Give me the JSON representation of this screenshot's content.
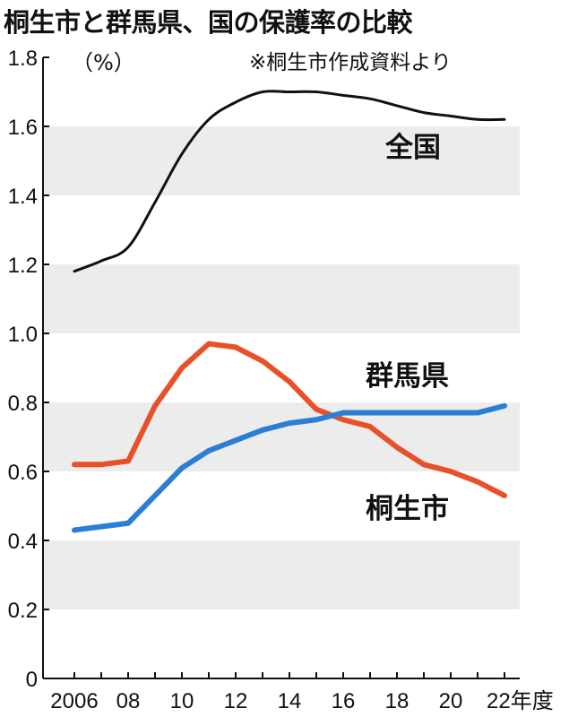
{
  "title": "桐生市と群馬県、国の保護率の比較",
  "source": "※桐生市作成資料より",
  "chart_data": {
    "type": "line",
    "title": "桐生市と群馬県、国の保護率の比較",
    "ylabel": "（%）",
    "xlabel": "年度",
    "ylim": [
      0,
      1.8
    ],
    "yticks": [
      "0",
      "0.2",
      "0.4",
      "0.6",
      "0.8",
      "1.0",
      "1.2",
      "1.4",
      "1.6",
      "1.8"
    ],
    "xticks": [
      "2006",
      "08",
      "10",
      "12",
      "14",
      "16",
      "18",
      "20",
      "22年度"
    ],
    "x": [
      2006,
      2007,
      2008,
      2009,
      2010,
      2011,
      2012,
      2013,
      2014,
      2015,
      2016,
      2017,
      2018,
      2019,
      2020,
      2021,
      2022
    ],
    "grid": "alternating horizontal bands",
    "series": [
      {
        "name": "全国",
        "color": "#111111",
        "values": [
          1.18,
          1.21,
          1.25,
          1.38,
          1.52,
          1.62,
          1.67,
          1.7,
          1.7,
          1.7,
          1.69,
          1.68,
          1.66,
          1.64,
          1.63,
          1.62,
          1.62
        ]
      },
      {
        "name": "群馬県",
        "color": "#e8502a",
        "values": [
          0.62,
          0.62,
          0.63,
          0.79,
          0.9,
          0.97,
          0.96,
          0.92,
          0.86,
          0.78,
          0.75,
          0.73,
          0.67,
          0.62,
          0.6,
          0.57,
          0.53
        ]
      },
      {
        "name": "桐生市",
        "color": "#2a7fd4",
        "values": [
          0.43,
          0.44,
          0.45,
          0.53,
          0.61,
          0.66,
          0.69,
          0.72,
          0.74,
          0.75,
          0.77,
          0.77,
          0.77,
          0.77,
          0.77,
          0.77,
          0.79
        ]
      }
    ]
  }
}
